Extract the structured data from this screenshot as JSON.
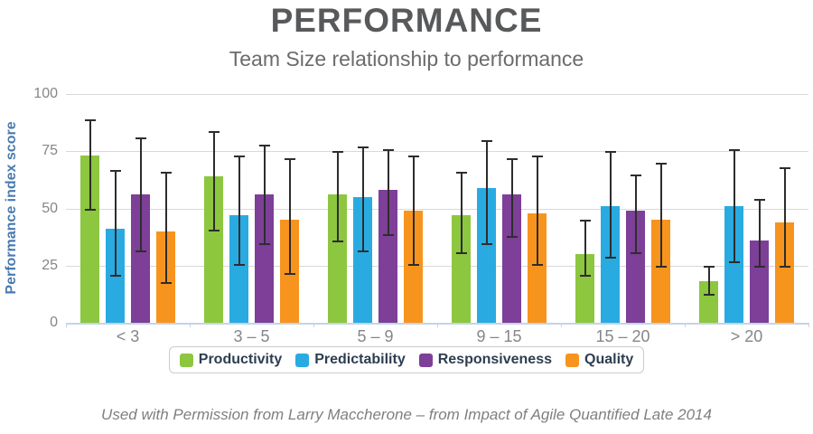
{
  "header": {
    "title": "PERFORMANCE",
    "subtitle": "Team Size relationship to performance"
  },
  "footer": {
    "credit": "Used with Permission from Larry Maccherone – from Impact of Agile Quantified Late 2014"
  },
  "chart_data": {
    "type": "bar",
    "title": "PERFORMANCE",
    "subtitle": "Team Size relationship to performance",
    "xlabel": "",
    "ylabel": "Performance index score",
    "ylim": [
      0,
      100
    ],
    "yticks": [
      0,
      25,
      50,
      75,
      100
    ],
    "grid": true,
    "legend_position": "bottom",
    "error_bars": true,
    "categories": [
      "< 3",
      "3 – 5",
      "5 – 9",
      "9 – 15",
      "15 – 20",
      "> 20"
    ],
    "series": [
      {
        "name": "Productivity",
        "color": "#8DC63F",
        "values": [
          73,
          64,
          56,
          47,
          30,
          18
        ],
        "err_low": [
          49,
          40,
          35,
          30,
          20,
          12
        ],
        "err_high": [
          89,
          84,
          75,
          66,
          45,
          25
        ]
      },
      {
        "name": "Predictability",
        "color": "#29ABE2",
        "values": [
          41,
          47,
          55,
          59,
          51,
          51
        ],
        "err_low": [
          20,
          25,
          31,
          34,
          28,
          26
        ],
        "err_high": [
          67,
          73,
          77,
          80,
          75,
          76
        ]
      },
      {
        "name": "Responsiveness",
        "color": "#7D3F98",
        "values": [
          56,
          56,
          58,
          56,
          49,
          36
        ],
        "err_low": [
          31,
          34,
          38,
          37,
          30,
          24
        ],
        "err_high": [
          81,
          78,
          76,
          72,
          65,
          54
        ]
      },
      {
        "name": "Quality",
        "color": "#F7941E",
        "values": [
          40,
          45,
          49,
          48,
          45,
          44
        ],
        "err_low": [
          17,
          21,
          25,
          25,
          24,
          24
        ],
        "err_high": [
          66,
          72,
          73,
          73,
          70,
          68
        ]
      }
    ]
  },
  "theme": {
    "title_color": "#58595B",
    "subtitle_color": "#6A6B6D",
    "axis_label_color": "#4A7AB0",
    "tick_label_color": "#85868A",
    "gridline_color": "#D9D9D9",
    "baseline_color": "#C2D4E8",
    "error_bar_color": "#2D2D2D",
    "legend_border_color": "#CBCBCB",
    "legend_text_color": "#2D3E50",
    "footer_color": "#7F7F7F"
  }
}
